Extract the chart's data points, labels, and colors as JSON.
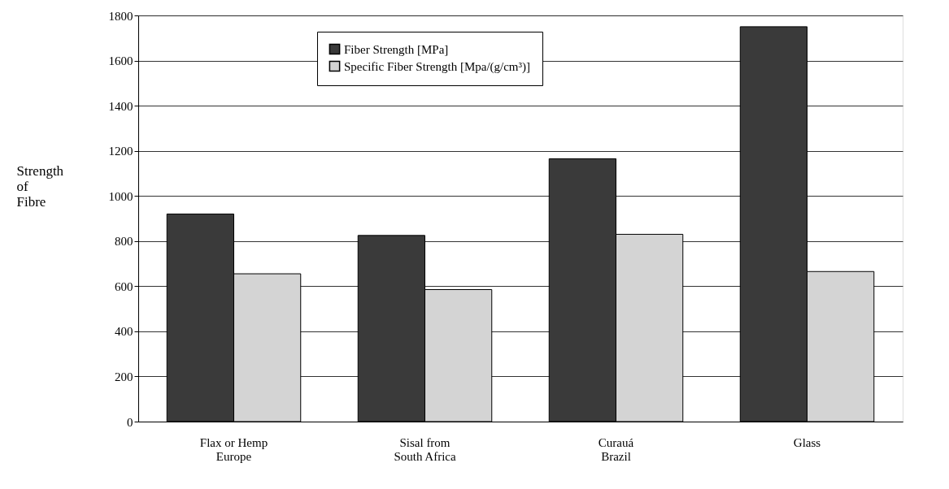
{
  "chart_data": {
    "type": "bar",
    "ylabel": "Strength of Fibre",
    "categories": [
      "Flax or Hemp\nEurope",
      "Sisal from\nSouth Africa",
      "Curauá\nBrazil",
      "Glass"
    ],
    "series": [
      {
        "name": "Fiber Strength [MPa]",
        "color": "#3a3a3a",
        "values": [
          920,
          825,
          1165,
          1750
        ]
      },
      {
        "name": "Specific Fiber Strength [Mpa/(g/cm³)]",
        "color": "#d4d4d4",
        "values": [
          655,
          585,
          830,
          665
        ]
      }
    ],
    "ylim": [
      0,
      1800
    ],
    "yticks": [
      0,
      200,
      400,
      600,
      800,
      1000,
      1200,
      1400,
      1600,
      1800
    ],
    "grid": "y",
    "legend": "top"
  }
}
